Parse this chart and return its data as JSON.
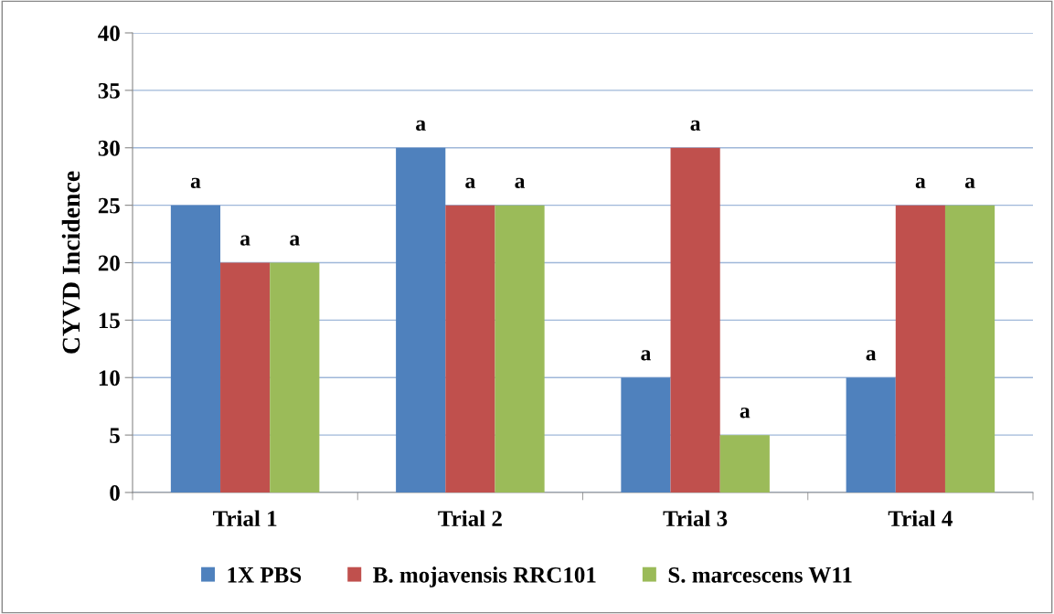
{
  "chart_data": {
    "type": "bar",
    "ylabel": "CYVD Incidence",
    "categories": [
      "Trial 1",
      "Trial 2",
      "Trial 3",
      "Trial 4"
    ],
    "series": [
      {
        "name": "1X PBS",
        "color": "#4f81bd",
        "values": [
          25,
          30,
          10,
          10
        ],
        "value_labels": [
          "a",
          "a",
          "a",
          "a"
        ]
      },
      {
        "name": "B. mojavensis RRC101",
        "color": "#c0504d",
        "values": [
          20,
          25,
          30,
          25
        ],
        "value_labels": [
          "a",
          "a",
          "a",
          "a"
        ]
      },
      {
        "name": "S. marcescens W11",
        "color": "#9bbb59",
        "values": [
          20,
          25,
          5,
          25
        ],
        "value_labels": [
          "a",
          "a",
          "a",
          "a"
        ]
      }
    ],
    "ylim": [
      0,
      40
    ],
    "yticks": [
      0,
      5,
      10,
      15,
      20,
      25,
      30,
      35,
      40
    ],
    "grid": "y",
    "legend": "bottom"
  }
}
